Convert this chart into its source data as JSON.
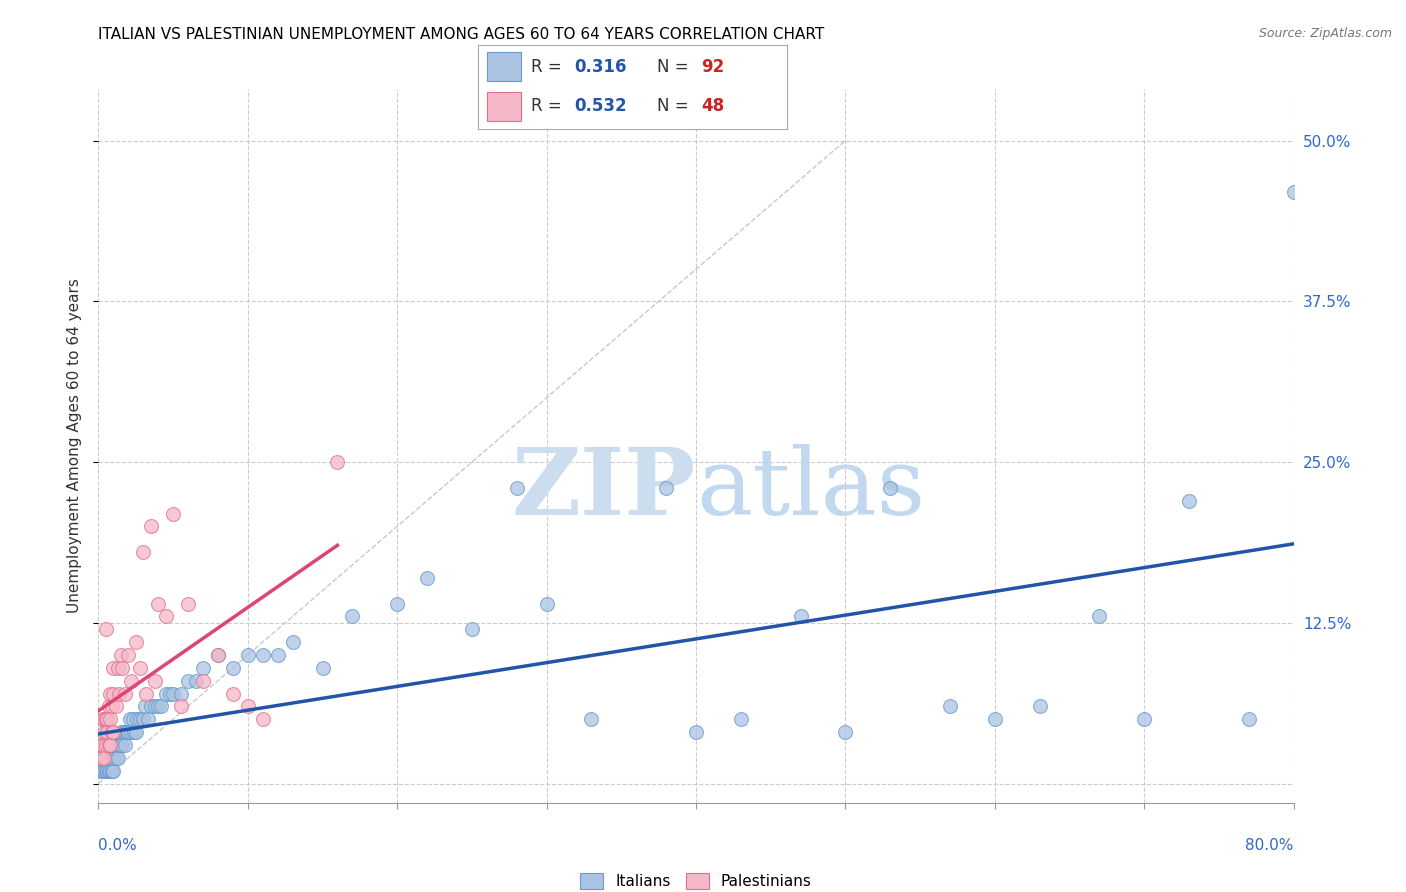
{
  "title": "ITALIAN VS PALESTINIAN UNEMPLOYMENT AMONG AGES 60 TO 64 YEARS CORRELATION CHART",
  "source": "Source: ZipAtlas.com",
  "ylabel": "Unemployment Among Ages 60 to 64 years",
  "xlim": [
    0.0,
    0.8
  ],
  "ylim": [
    -0.015,
    0.54
  ],
  "yticks": [
    0.0,
    0.125,
    0.25,
    0.375,
    0.5
  ],
  "ytick_labels": [
    "",
    "12.5%",
    "25.0%",
    "37.5%",
    "50.0%"
  ],
  "xtick_positions": [
    0.0,
    0.1,
    0.2,
    0.3,
    0.4,
    0.5,
    0.6,
    0.7,
    0.8
  ],
  "italian_R": 0.316,
  "italian_N": 92,
  "palestinian_R": 0.532,
  "palestinian_N": 48,
  "italian_color": "#aac4e2",
  "italian_edge_color": "#6699cc",
  "italian_line_color": "#2255aa",
  "palestinian_color": "#f5b8c8",
  "palestinian_edge_color": "#e0708a",
  "palestinian_line_color": "#dd4477",
  "diagonal_color": "#bbbbbb",
  "legend_R_color": "#2255aa",
  "legend_N_color": "#cc2222",
  "italian_x": [
    0.001,
    0.002,
    0.003,
    0.003,
    0.004,
    0.004,
    0.004,
    0.005,
    0.005,
    0.005,
    0.005,
    0.005,
    0.006,
    0.006,
    0.006,
    0.007,
    0.007,
    0.007,
    0.007,
    0.008,
    0.008,
    0.008,
    0.009,
    0.009,
    0.009,
    0.01,
    0.01,
    0.01,
    0.01,
    0.01,
    0.012,
    0.012,
    0.013,
    0.013,
    0.014,
    0.015,
    0.015,
    0.016,
    0.017,
    0.018,
    0.018,
    0.019,
    0.02,
    0.021,
    0.022,
    0.023,
    0.024,
    0.025,
    0.026,
    0.028,
    0.03,
    0.031,
    0.033,
    0.035,
    0.038,
    0.04,
    0.042,
    0.045,
    0.048,
    0.05,
    0.055,
    0.06,
    0.065,
    0.07,
    0.08,
    0.09,
    0.1,
    0.11,
    0.12,
    0.13,
    0.15,
    0.17,
    0.2,
    0.22,
    0.25,
    0.28,
    0.3,
    0.33,
    0.38,
    0.4,
    0.43,
    0.47,
    0.5,
    0.53,
    0.57,
    0.6,
    0.63,
    0.67,
    0.7,
    0.73,
    0.77,
    0.8
  ],
  "italian_y": [
    0.02,
    0.01,
    0.03,
    0.01,
    0.02,
    0.03,
    0.01,
    0.02,
    0.01,
    0.03,
    0.02,
    0.04,
    0.02,
    0.01,
    0.03,
    0.02,
    0.01,
    0.03,
    0.02,
    0.02,
    0.01,
    0.03,
    0.02,
    0.01,
    0.03,
    0.02,
    0.03,
    0.01,
    0.02,
    0.03,
    0.03,
    0.02,
    0.03,
    0.02,
    0.03,
    0.03,
    0.04,
    0.03,
    0.04,
    0.03,
    0.04,
    0.04,
    0.04,
    0.05,
    0.04,
    0.05,
    0.04,
    0.04,
    0.05,
    0.05,
    0.05,
    0.06,
    0.05,
    0.06,
    0.06,
    0.06,
    0.06,
    0.07,
    0.07,
    0.07,
    0.07,
    0.08,
    0.08,
    0.09,
    0.1,
    0.09,
    0.1,
    0.1,
    0.1,
    0.11,
    0.09,
    0.13,
    0.14,
    0.16,
    0.12,
    0.23,
    0.14,
    0.05,
    0.23,
    0.04,
    0.05,
    0.13,
    0.04,
    0.23,
    0.06,
    0.05,
    0.06,
    0.13,
    0.05,
    0.22,
    0.05,
    0.46
  ],
  "palestinian_x": [
    0.001,
    0.002,
    0.002,
    0.003,
    0.003,
    0.004,
    0.004,
    0.004,
    0.005,
    0.005,
    0.005,
    0.006,
    0.006,
    0.007,
    0.007,
    0.008,
    0.008,
    0.008,
    0.009,
    0.009,
    0.01,
    0.01,
    0.01,
    0.012,
    0.013,
    0.014,
    0.015,
    0.016,
    0.018,
    0.02,
    0.022,
    0.025,
    0.028,
    0.03,
    0.032,
    0.035,
    0.038,
    0.04,
    0.045,
    0.05,
    0.055,
    0.06,
    0.07,
    0.08,
    0.09,
    0.1,
    0.11,
    0.16
  ],
  "palestinian_y": [
    0.02,
    0.02,
    0.03,
    0.05,
    0.03,
    0.04,
    0.02,
    0.05,
    0.03,
    0.05,
    0.12,
    0.04,
    0.05,
    0.06,
    0.03,
    0.05,
    0.07,
    0.03,
    0.06,
    0.04,
    0.07,
    0.04,
    0.09,
    0.06,
    0.09,
    0.07,
    0.1,
    0.09,
    0.07,
    0.1,
    0.08,
    0.11,
    0.09,
    0.18,
    0.07,
    0.2,
    0.08,
    0.14,
    0.13,
    0.21,
    0.06,
    0.14,
    0.08,
    0.1,
    0.07,
    0.06,
    0.05,
    0.25
  ]
}
